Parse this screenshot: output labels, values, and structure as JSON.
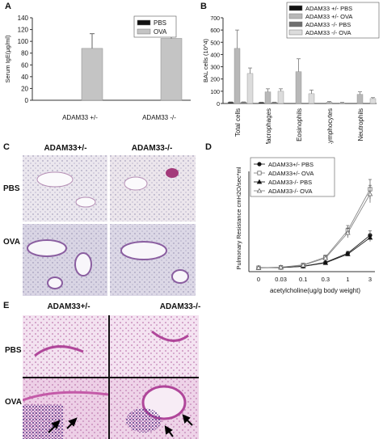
{
  "panels": {
    "a": {
      "label": "A"
    },
    "b": {
      "label": "B"
    },
    "c": {
      "label": "C",
      "col1": "ADAM33+/-",
      "col2": "ADAM33-/-",
      "row1": "PBS",
      "row2": "OVA"
    },
    "d": {
      "label": "D"
    },
    "e": {
      "label": "E",
      "col1": "ADAM33+/-",
      "col2": "ADAM33-/-",
      "row1": "PBS",
      "row2": "OVA"
    }
  },
  "colors": {
    "black": "#111111",
    "gray": "#b8b8b8",
    "dark_gray": "#6e6e6e",
    "light_gray": "#dcdcdc"
  },
  "chart_data": [
    {
      "id": "A",
      "type": "bar",
      "title": "",
      "ylabel": "Serum IgE(μg/ml)",
      "xlabel": "",
      "ylim": [
        0,
        140
      ],
      "yticks": [
        "0",
        "20",
        "40",
        "60",
        "80",
        "100",
        "120",
        "140"
      ],
      "categories": [
        "ADAM33 +/-",
        "ADAM33 -/-"
      ],
      "legend": {
        "position": "top-right"
      },
      "series": [
        {
          "name": "PBS",
          "color": "#111111",
          "values": [
            0,
            0
          ],
          "errors": [
            0,
            0
          ]
        },
        {
          "name": "OVA",
          "color": "#c4c4c4",
          "values": [
            88,
            105
          ],
          "errors": [
            25,
            18
          ]
        }
      ]
    },
    {
      "id": "B",
      "type": "bar",
      "title": "",
      "ylabel": "BAL cells (10^4)",
      "ylim": [
        0,
        700
      ],
      "yticks": [
        "0",
        "100",
        "200",
        "300",
        "400",
        "500",
        "600",
        "700"
      ],
      "categories": [
        "Total cells",
        "Macrophages",
        "Eosinophils",
        "Lymphocytes",
        "Neutrophils"
      ],
      "legend": {
        "position": "top-right"
      },
      "series": [
        {
          "name": "ADAM33 +/- PBS",
          "color": "#111111",
          "values": [
            10,
            8,
            0,
            0,
            0
          ],
          "errors": [
            3,
            3,
            0,
            0,
            0
          ]
        },
        {
          "name": "ADAM33 +/- OVA",
          "color": "#b8b8b8",
          "values": [
            450,
            95,
            260,
            10,
            75
          ],
          "errors": [
            150,
            25,
            105,
            6,
            20
          ]
        },
        {
          "name": "ADAM33 -/- PBS",
          "color": "#6e6e6e",
          "values": [
            10,
            8,
            0,
            0,
            0
          ],
          "errors": [
            3,
            3,
            0,
            0,
            0
          ]
        },
        {
          "name": "ADAM33 -/- OVA",
          "color": "#dcdcdc",
          "values": [
            245,
            100,
            80,
            5,
            40
          ],
          "errors": [
            45,
            20,
            30,
            4,
            8
          ]
        }
      ]
    },
    {
      "id": "D",
      "type": "line",
      "title": "",
      "ylabel": "Pulmonary Resistance cmH2O/sec*ml",
      "xlabel": "acetylcholine(ug/g body weight)",
      "x": [
        "0",
        "0.03",
        "0.1",
        "0.3",
        "1",
        "3"
      ],
      "legend": {
        "position": "top-left"
      },
      "series": [
        {
          "name": "ADAM33+/- PBS",
          "marker": "filled-circle",
          "values": [
            0.8,
            0.85,
            1.1,
            1.9,
            3.8,
            7.5
          ],
          "errors": [
            0,
            0,
            0.1,
            0.2,
            0.4,
            0.9
          ]
        },
        {
          "name": "ADAM33+/- OVA",
          "marker": "open-square",
          "values": [
            0.8,
            0.9,
            1.4,
            3.0,
            8.5,
            17.0
          ],
          "errors": [
            0,
            0,
            0.2,
            0.4,
            1.0,
            2.0
          ]
        },
        {
          "name": "ADAM33-/- PBS",
          "marker": "filled-triangle",
          "values": [
            0.8,
            0.85,
            1.1,
            1.8,
            3.6,
            7.0
          ],
          "errors": [
            0,
            0,
            0.1,
            0.2,
            0.4,
            0.8
          ]
        },
        {
          "name": "ADAM33-/- OVA",
          "marker": "open-triangle",
          "values": [
            0.8,
            0.9,
            1.3,
            2.8,
            8.0,
            16.0
          ],
          "errors": [
            0,
            0,
            0.2,
            0.4,
            1.0,
            1.8
          ]
        }
      ],
      "ylim": [
        0,
        20
      ]
    }
  ]
}
